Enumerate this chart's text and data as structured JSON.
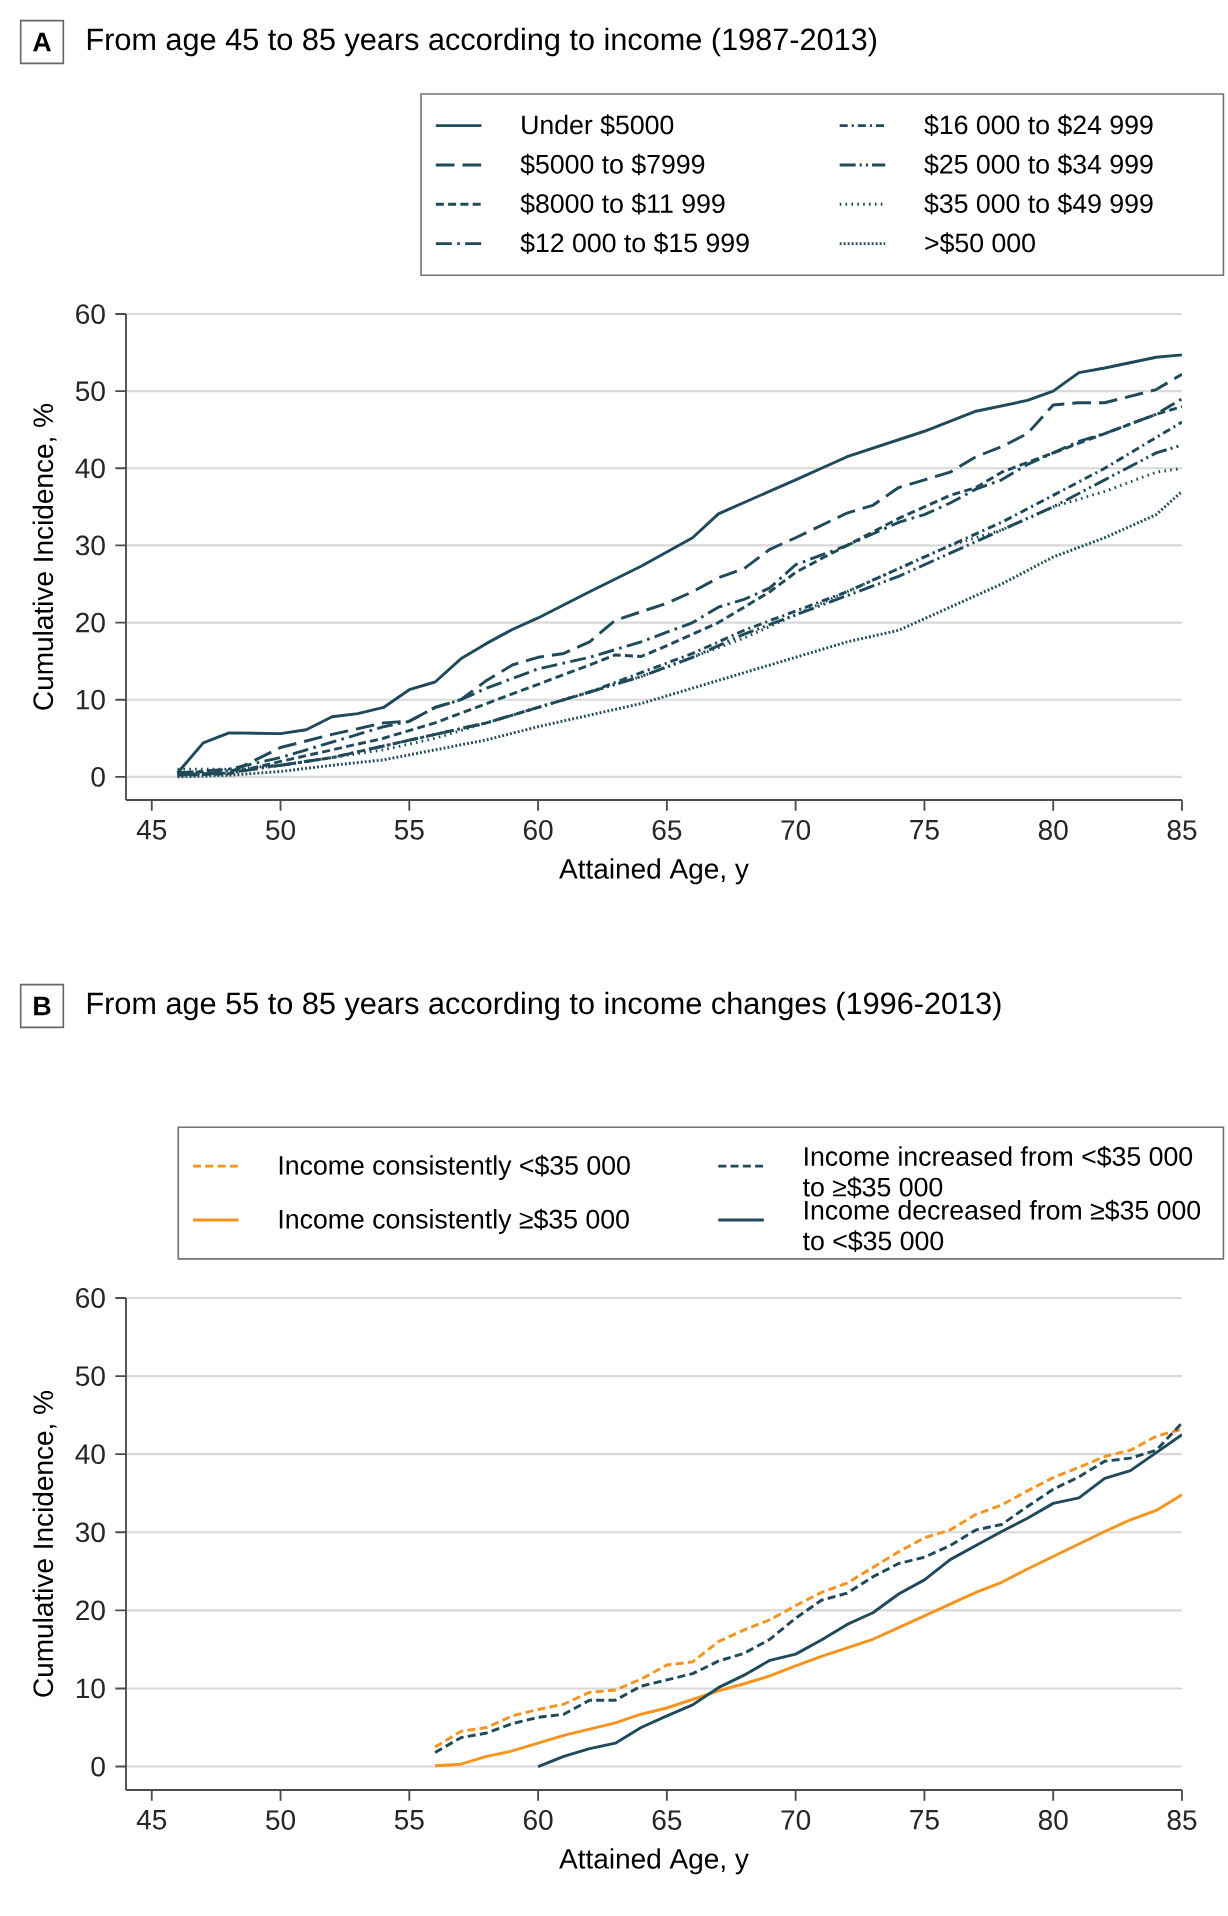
{
  "chart_data": [
    {
      "type": "line",
      "title": "From age 45 to 85 years according to income (1987-2013)",
      "annotations": [
        "A"
      ],
      "xlabel": "Attained Age, y",
      "ylabel": "Cumulative Incidence, %",
      "xlim": [
        44,
        85
      ],
      "ylim": [
        -3,
        60
      ],
      "xticks": [
        45,
        50,
        55,
        60,
        65,
        70,
        75,
        80,
        85
      ],
      "yticks": [
        0,
        10,
        20,
        30,
        40,
        50,
        60
      ],
      "grid": "y",
      "legend": "top right",
      "series": [
        {
          "name": "Under $5000",
          "color": "#1f4a5a",
          "line_style": "solid",
          "x": [
            46,
            47,
            48,
            50,
            51,
            52,
            53,
            54,
            55,
            56,
            57,
            58,
            59,
            60,
            62,
            64,
            66,
            67,
            70,
            72,
            75,
            77,
            79,
            80,
            81,
            82,
            84,
            85
          ],
          "values": [
            0.5,
            4.4,
            5.7,
            5.6,
            6.1,
            7.8,
            8.2,
            9.0,
            11.3,
            12.3,
            15.3,
            17.3,
            19.1,
            20.6,
            24,
            27.3,
            31,
            34.1,
            38.5,
            41.5,
            44.8,
            47.4,
            48.8,
            50,
            52.4,
            53,
            54.4,
            54.7
          ]
        },
        {
          "name": "$5000 to $7999",
          "color": "#1f4a5a",
          "line_style": "long dashed",
          "x": [
            46,
            48,
            50,
            52,
            54,
            55,
            56,
            57,
            58,
            59,
            60,
            61,
            62,
            63,
            65,
            66,
            67,
            68,
            69,
            70,
            72,
            73,
            74,
            75,
            76,
            77,
            78,
            79,
            80,
            81,
            82,
            84,
            85
          ],
          "values": [
            0.3,
            0.5,
            3.8,
            5.5,
            7,
            7.2,
            9,
            10,
            12.5,
            14.5,
            15.5,
            16,
            17.5,
            20.3,
            22.5,
            24,
            25.8,
            27,
            29.5,
            31,
            34.2,
            35.2,
            37.5,
            38.5,
            39.5,
            41.5,
            42.8,
            44.5,
            48.2,
            48.5,
            48.5,
            50.2,
            52.2
          ]
        },
        {
          "name": "$8000 to $11 999",
          "color": "#1f4a5a",
          "line_style": "dashed",
          "x": [
            46,
            48,
            50,
            52,
            54,
            56,
            58,
            60,
            62,
            63,
            64,
            65,
            66,
            67,
            68,
            69,
            70,
            71,
            72,
            74,
            76,
            77,
            78,
            80,
            82,
            84,
            85
          ],
          "values": [
            0.2,
            0.4,
            2,
            3.5,
            5,
            7,
            9.5,
            12,
            14.5,
            15.8,
            15.6,
            17,
            18.5,
            20,
            22,
            24,
            26.5,
            28.3,
            30,
            33.5,
            36.5,
            37.5,
            39.5,
            42,
            44.5,
            47,
            48
          ]
        },
        {
          "name": "$12 000 to $15 999",
          "color": "#1f4a5a",
          "line_style": "long dashdot",
          "x": [
            46,
            48,
            50,
            52,
            54,
            55,
            56,
            57,
            58,
            60,
            62,
            64,
            66,
            67,
            68,
            69,
            70,
            72,
            74,
            75,
            76,
            77,
            78,
            79,
            80,
            81,
            82,
            84,
            85
          ],
          "values": [
            0.5,
            1,
            2.5,
            4.5,
            6.5,
            7.2,
            9,
            10,
            11.5,
            14,
            15.5,
            17.5,
            20,
            22,
            23,
            24.5,
            27.5,
            30,
            33,
            34,
            35.5,
            37.3,
            38.5,
            40.5,
            42,
            43.5,
            44.5,
            47,
            49
          ]
        },
        {
          "name": "$16 000 to $24 999",
          "color": "#1f4a5a",
          "line_style": "dashdot",
          "x": [
            46,
            48,
            50,
            52,
            54,
            56,
            58,
            60,
            62,
            64,
            66,
            68,
            70,
            72,
            74,
            76,
            77,
            78,
            80,
            82,
            84,
            85
          ],
          "values": [
            0.5,
            0.8,
            1.5,
            2.5,
            4,
            5.5,
            7,
            9,
            11,
            13.5,
            16,
            19,
            21.5,
            24,
            27,
            30,
            31.5,
            33,
            36.5,
            40,
            44,
            46
          ]
        },
        {
          "name": "$25 000 to $34 999",
          "color": "#1f4a5a",
          "line_style": "dashdotdot",
          "x": [
            46,
            48,
            50,
            52,
            54,
            56,
            58,
            60,
            62,
            64,
            66,
            68,
            70,
            72,
            74,
            76,
            78,
            80,
            82,
            84,
            85
          ],
          "values": [
            0.3,
            0.5,
            1.5,
            2.5,
            4,
            5.5,
            7,
            9,
            11,
            13,
            15.5,
            18.5,
            21,
            23.5,
            26,
            29,
            32,
            35,
            38.5,
            42,
            43
          ]
        },
        {
          "name": "$35 000 to $49 999",
          "color": "#1f4a5a",
          "line_style": "loosely dotted",
          "x": [
            46,
            48,
            50,
            52,
            54,
            56,
            58,
            60,
            62,
            64,
            66,
            68,
            70,
            72,
            74,
            76,
            78,
            80,
            82,
            84,
            85
          ],
          "values": [
            1,
            1,
            1.5,
            2.5,
            3.5,
            5,
            7,
            9,
            11,
            13,
            15.5,
            18,
            21,
            24,
            27,
            30,
            32,
            35,
            37,
            39.5,
            40
          ]
        },
        {
          "name": ">$50 000",
          "color": "#1f4a5a",
          "line_style": "dotted",
          "x": [
            46,
            48,
            50,
            52,
            54,
            56,
            58,
            60,
            62,
            64,
            66,
            68,
            70,
            72,
            74,
            76,
            78,
            80,
            82,
            84,
            85
          ],
          "values": [
            0,
            0.2,
            0.7,
            1.5,
            2.2,
            3.5,
            4.8,
            6.5,
            8,
            9.5,
            11.5,
            13.5,
            15.5,
            17.5,
            19,
            22,
            25,
            28.5,
            31,
            34,
            37
          ]
        }
      ]
    },
    {
      "type": "line",
      "title": "From age 55 to 85 years according to income changes (1996-2013)",
      "annotations": [
        "B"
      ],
      "xlabel": "Attained Age, y",
      "ylabel": "Cumulative Incidence, %",
      "xlim": [
        44,
        85
      ],
      "ylim": [
        -3,
        60
      ],
      "xticks": [
        45,
        50,
        55,
        60,
        65,
        70,
        75,
        80,
        85
      ],
      "yticks": [
        0,
        10,
        20,
        30,
        40,
        50,
        60
      ],
      "grid": "y",
      "legend": "top right",
      "series": [
        {
          "name": "Income consistently <$35 000",
          "color": "#f7941d",
          "line_style": "dashed",
          "x": [
            56,
            57,
            58,
            59,
            60,
            61,
            62,
            63,
            64,
            65,
            66,
            67,
            68,
            69,
            70,
            71,
            72,
            73,
            74,
            75,
            76,
            77,
            78,
            79,
            80,
            81,
            82,
            83,
            84,
            85
          ],
          "values": [
            2.5,
            4.5,
            5,
            6.5,
            7.3,
            8,
            9.5,
            9.8,
            11.2,
            13,
            13.4,
            16,
            17.5,
            18.8,
            20.6,
            22.3,
            23.5,
            25.5,
            27.5,
            29.3,
            30.3,
            32.3,
            33.5,
            35.3,
            37,
            38.3,
            39.7,
            40.5,
            42.3,
            43.2
          ]
        },
        {
          "name": "Income consistently ≥$35 000",
          "color": "#f7941d",
          "line_style": "solid",
          "x": [
            56,
            57,
            58,
            59,
            60,
            61,
            62,
            63,
            64,
            65,
            66,
            67,
            68,
            69,
            70,
            71,
            72,
            73,
            74,
            75,
            76,
            77,
            78,
            79,
            80,
            81,
            82,
            83,
            84,
            85
          ],
          "values": [
            0.1,
            0.3,
            1.3,
            2,
            3,
            4,
            4.8,
            5.6,
            6.7,
            7.5,
            8.6,
            9.7,
            10.6,
            11.6,
            12.9,
            14.1,
            15.2,
            16.3,
            17.8,
            19.3,
            20.8,
            22.3,
            23.6,
            25.3,
            26.9,
            28.5,
            30.1,
            31.6,
            32.8,
            34.8
          ]
        },
        {
          "name": "Income increased from <$35 000 to ≥$35 000",
          "color": "#1f4a5a",
          "line_style": "dashed",
          "x": [
            56,
            57,
            58,
            59,
            60,
            61,
            62,
            63,
            64,
            65,
            66,
            67,
            68,
            69,
            70,
            71,
            72,
            73,
            74,
            75,
            76,
            77,
            78,
            79,
            80,
            81,
            82,
            83,
            84,
            85
          ],
          "values": [
            1.8,
            3.7,
            4.3,
            5.5,
            6.3,
            6.7,
            8.5,
            8.5,
            10.3,
            11.1,
            11.9,
            13.5,
            14.5,
            16.3,
            19,
            21.3,
            22.2,
            24.3,
            26,
            26.8,
            28.3,
            30.3,
            31,
            33.3,
            35.5,
            37.1,
            39.1,
            39.5,
            40.5,
            44
          ]
        },
        {
          "name": "Income decreased from ≥$35 000 to <$35 000",
          "color": "#1f4a5a",
          "line_style": "solid",
          "x": [
            60,
            61,
            62,
            63,
            64,
            65,
            66,
            67,
            68,
            69,
            70,
            71,
            72,
            73,
            74,
            75,
            76,
            77,
            78,
            79,
            80,
            81,
            82,
            83,
            84,
            85
          ],
          "values": [
            0,
            1.3,
            2.3,
            3.0,
            5.0,
            6.5,
            7.9,
            10.1,
            11.7,
            13.6,
            14.4,
            16.2,
            18.2,
            19.7,
            22.1,
            23.9,
            26.5,
            28.3,
            30.1,
            31.8,
            33.7,
            34.4,
            36.9,
            37.9,
            40.2,
            42.5
          ]
        }
      ]
    }
  ]
}
